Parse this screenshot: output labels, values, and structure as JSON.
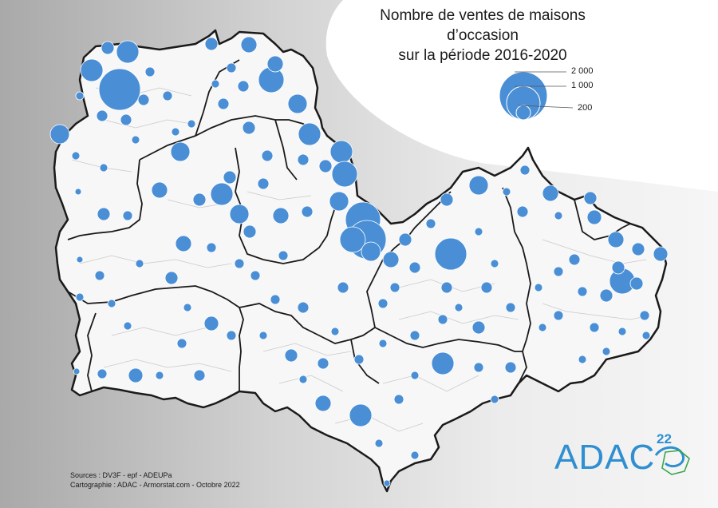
{
  "title": {
    "line1": "Nombre de ventes de maisons d’occasion",
    "line2": "sur la période 2016-2020"
  },
  "legend": {
    "items": [
      {
        "label": "2 000",
        "value": 2000
      },
      {
        "label": "1 000",
        "value": 1000
      },
      {
        "label": "200",
        "value": 200
      }
    ],
    "circle_color": "#4a8fd6"
  },
  "sources": {
    "line1": "Sources : DV3F - epf - ADEUPa",
    "line2": "Cartographie : ADAC - Armorstat.com - Octobre 2022"
  },
  "logo": {
    "text": "ADAC",
    "superscript": "22",
    "color": "#2f8fd0"
  },
  "map": {
    "land_color": "#f7f7f7",
    "border_color": "#1a1a1a",
    "circle_color": "#4a8fd6"
  }
}
